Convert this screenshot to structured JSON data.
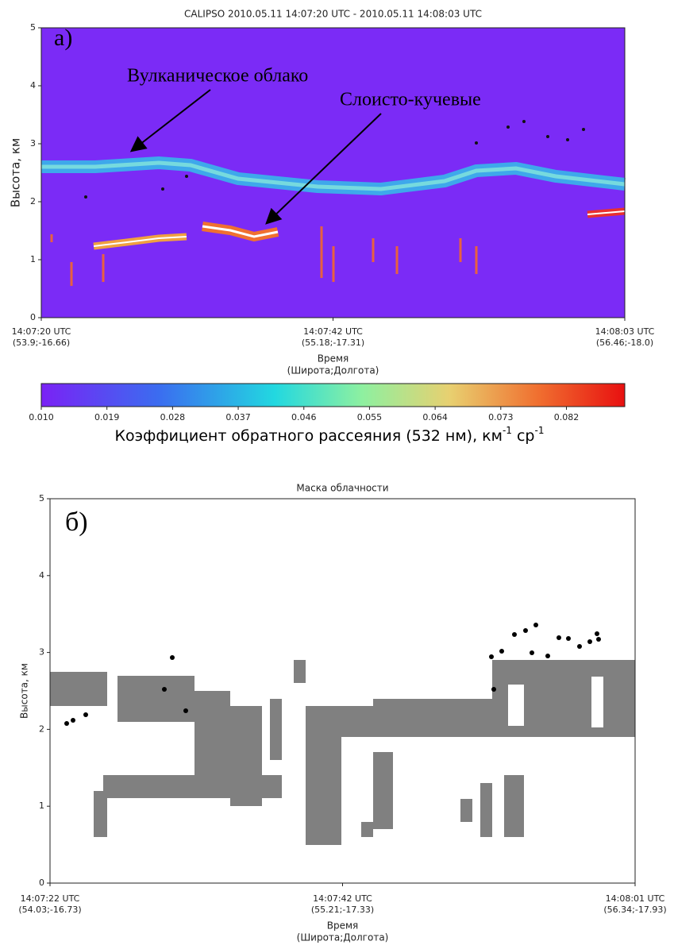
{
  "chart_data": [
    {
      "type": "backscatter",
      "title": "CALIPSO 2010.05.11 14:07:20 UTC - 2010.05.11 14:08:03 UTC",
      "panel_label": "а)",
      "annotations": [
        "Вулканическое облако",
        "Слоисто-кучевые"
      ],
      "y_label": "Высота, км",
      "ylim": [
        0,
        5
      ],
      "yticks": [
        0,
        1,
        2,
        3,
        4,
        5
      ],
      "x_label": "Время",
      "x_sublabel": "(Широта;Долгота)",
      "xtick_labels": [
        [
          "14:07:20 UTC",
          "(53.9;-16.66)"
        ],
        [
          "14:07:42 UTC",
          "(55.18;-17.31)"
        ],
        [
          "14:08:03 UTC",
          "(56.46;-18.0)"
        ]
      ],
      "colorbar": {
        "clim": [
          0.01,
          0.09
        ],
        "ticks": [
          {
            "value": 0.01,
            "label": "0.010"
          },
          0.019,
          0.028,
          0.037,
          0.046,
          0.055,
          0.064,
          0.073,
          0.082
        ],
        "label": {
          "text": "Коэффициент обратного рассеяния (532 нм), км",
          "exp1": "-1",
          "unit2": " ср",
          "exp2": "-1"
        }
      }
    },
    {
      "type": "cloud_mask",
      "title": "Маска облачности",
      "panel_label": "б)",
      "y_label": "Высота, км",
      "ylim": [
        0,
        5
      ],
      "yticks": [
        0,
        1,
        2,
        3,
        4,
        5
      ],
      "x_label": "Время",
      "x_sublabel": "(Широта;Долгота)",
      "xtick_labels": [
        [
          "14:07:22 UTC",
          "(54.03;-16.73)"
        ],
        [
          "14:07:42 UTC",
          "(55.21;-17.33)"
        ],
        [
          "14:08:01 UTC",
          "(56.34;-17.93)"
        ]
      ]
    }
  ]
}
